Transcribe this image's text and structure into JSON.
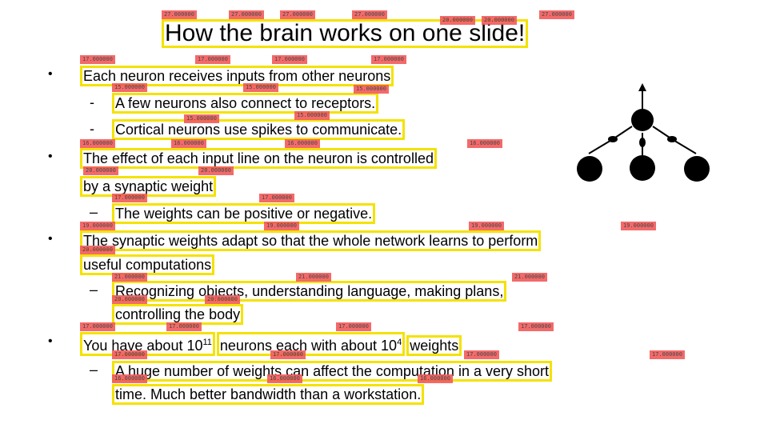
{
  "slide": {
    "title": "How the brain works on one slide!",
    "bullet_marker": "•",
    "dash_marker": "–",
    "hyphen_marker": "-",
    "score_27": "27.000000",
    "score_20": "20.000000",
    "score_17": "17.000000",
    "score_16": "16.000000",
    "score_15": "15.000000",
    "score_19": "19.000000",
    "score_21": "21.000000",
    "lines": {
      "l1": "Each neuron receives inputs from other neurons",
      "l1a": "A few neurons also connect to receptors.",
      "l1b": "Cortical neurons use spikes to communicate.",
      "l2": "The effect of each input line on the neuron is controlled",
      "l2b": "by a synaptic weight",
      "l2a": "The weights can be positive or negative.",
      "l3": "The synaptic weights adapt so that the whole network learns to perform",
      "l3b": "useful computations",
      "l3a": "Recognizing objects, understanding language, making plans,",
      "l3a2": "controlling the body",
      "l4": "You have about 10",
      "l4_exp1": "11",
      "l4_mid": "neurons each with about 10",
      "l4_exp2": "4",
      "l4_end": "weights",
      "l4a": "A huge number of weights can affect the computation in a very short",
      "l4a2": "time. Much better bandwidth than a workstation."
    }
  }
}
